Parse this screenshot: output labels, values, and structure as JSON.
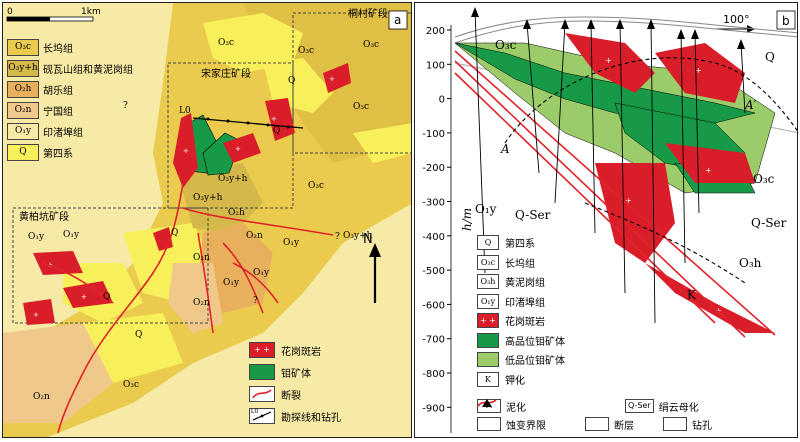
{
  "panel_a": {
    "label": "a",
    "scale": {
      "start": "0",
      "end": "1km"
    },
    "north": "N",
    "legend": [
      {
        "code": "O₃c",
        "text": "长坞组",
        "color": "#eacb4e"
      },
      {
        "code": "O₃y+h",
        "text": "砚瓦山组和黄泥岗组",
        "color": "#d4b94a"
      },
      {
        "code": "O₂h",
        "text": "胡乐组",
        "color": "#e8b05c"
      },
      {
        "code": "O₂n",
        "text": "宁国组",
        "color": "#f0c98a"
      },
      {
        "code": "O₁y",
        "text": "印渚埠组",
        "color": "#f7eaa6"
      },
      {
        "code": "Q",
        "text": "第四系",
        "color": "#f7f05a"
      }
    ],
    "legend2": [
      {
        "symbol": "granite",
        "text": "花岗斑岩"
      },
      {
        "symbol": "ore",
        "text": "钼矿体"
      },
      {
        "symbol": "fault",
        "text": "断裂"
      },
      {
        "symbol": "line",
        "code": "L0",
        "text": "勘探线和钻孔"
      }
    ],
    "sections": [
      "桐村矿段",
      "宋家庄矿段",
      "黄柏坑矿段"
    ],
    "map_labels": [
      "O₃c",
      "O₃c",
      "O₃c",
      "O₃c",
      "O₃c",
      "O₃c",
      "Q",
      "Q",
      "Q",
      "Q",
      "Q",
      "O₃y+h",
      "O₃y+h",
      "O₂h",
      "O₂n",
      "O₂n",
      "O₂n",
      "O₂n",
      "O₁y",
      "O₁y",
      "O₁y",
      "O₁y",
      "O₁y",
      "?",
      "?",
      "?",
      "O₃y+h",
      "L0"
    ]
  },
  "panel_b": {
    "label": "b",
    "azimuth": "100°",
    "axis_title": "h/m",
    "y_ticks": [
      "200",
      "100",
      "0",
      "-100",
      "-200",
      "-300",
      "-400",
      "-500",
      "-600",
      "-700",
      "-800",
      "-900"
    ],
    "section_labels": {
      "O3c_left": "O₃c",
      "O3c_right": "O₃c",
      "O1y": "O₁y",
      "O3h": "O₃h",
      "Q": "Q",
      "A": "A",
      "A_prime": "A′",
      "K": "K",
      "QSer_left": "Q-Ser",
      "QSer_right": "Q-Ser"
    },
    "legend": [
      {
        "code": "Q",
        "text": "第四系"
      },
      {
        "code": "O₃c",
        "text": "长坞组"
      },
      {
        "code": "O₃h",
        "text": "黄泥岗组"
      },
      {
        "code": "O₁y",
        "text": "印渚埠组"
      },
      {
        "symbol": "granite",
        "text": "花岗斑岩"
      },
      {
        "symbol": "high",
        "text": "高品位钼矿体",
        "color": "#179a48"
      },
      {
        "symbol": "low",
        "text": "低品位钼矿体",
        "color": "#9ccb6a"
      },
      {
        "code": "K",
        "text": "钾化"
      }
    ],
    "legend_bottom": [
      {
        "code": "A",
        "text": "泥化"
      },
      {
        "code": "Q-Ser",
        "text": "绢云母化"
      },
      {
        "symbol": "alteration-boundary",
        "text": "蚀变界限"
      },
      {
        "symbol": "fault",
        "text": "断层"
      },
      {
        "symbol": "drill",
        "text": "钻孔"
      }
    ]
  }
}
